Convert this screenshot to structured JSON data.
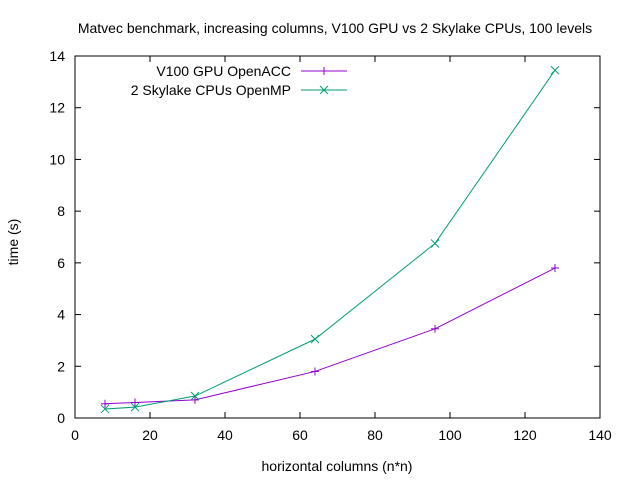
{
  "chart_data": {
    "type": "line",
    "title": "Matvec benchmark, increasing columns, V100 GPU vs 2 Skylake CPUs, 100 levels",
    "xlabel": "horizontal columns (n*n)",
    "ylabel": "time (s)",
    "xlim": [
      0,
      140
    ],
    "ylim": [
      0,
      14
    ],
    "xticks": [
      0,
      20,
      40,
      60,
      80,
      100,
      120,
      140
    ],
    "yticks": [
      0,
      2,
      4,
      6,
      8,
      10,
      12,
      14
    ],
    "grid": false,
    "legend_position": "top-left",
    "series": [
      {
        "name": "V100 GPU OpenACC",
        "color": "#9400d3",
        "marker": "plus",
        "x": [
          8,
          16,
          32,
          64,
          96,
          128
        ],
        "y": [
          0.55,
          0.6,
          0.7,
          1.8,
          3.45,
          5.8
        ]
      },
      {
        "name": "2 Skylake CPUs OpenMP",
        "color": "#009e73",
        "marker": "cross",
        "x": [
          8,
          16,
          32,
          64,
          96,
          128
        ],
        "y": [
          0.35,
          0.42,
          0.85,
          3.05,
          6.75,
          13.45
        ]
      }
    ]
  }
}
